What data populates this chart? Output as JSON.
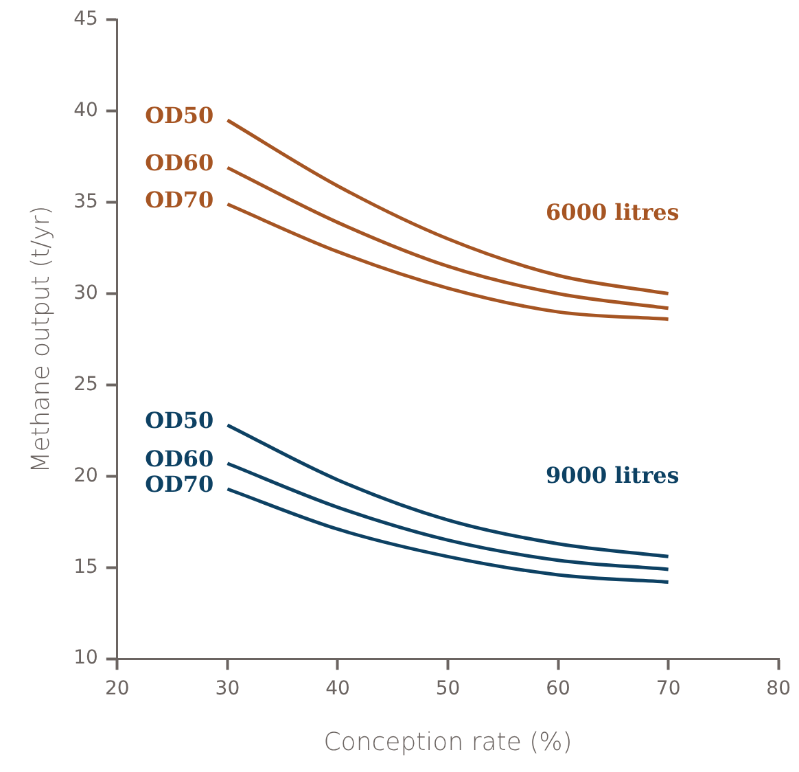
{
  "chart_data": {
    "type": "line",
    "xlabel": "Conception rate (%)",
    "ylabel": "Methane output (t/yr)",
    "x": [
      30,
      40,
      50,
      60,
      70
    ],
    "xlim": [
      20,
      80
    ],
    "xticks": [
      20,
      30,
      40,
      50,
      60,
      70,
      80
    ],
    "ylim": [
      10,
      45
    ],
    "yticks": [
      10,
      15,
      20,
      25,
      30,
      35,
      40,
      45
    ],
    "grid": false,
    "legend": false,
    "marker": "none",
    "line_style": "solid",
    "series": [
      {
        "name": "OD50",
        "color": "#a65523",
        "values": [
          39.5,
          35.9,
          33.0,
          31.0,
          30.0
        ]
      },
      {
        "name": "OD60",
        "color": "#a65523",
        "values": [
          36.9,
          33.9,
          31.5,
          30.0,
          29.2
        ]
      },
      {
        "name": "OD70",
        "color": "#a65523",
        "values": [
          34.9,
          32.3,
          30.3,
          29.0,
          28.6
        ]
      },
      {
        "name": "OD50",
        "color": "#0d4163",
        "values": [
          22.8,
          19.8,
          17.6,
          16.3,
          15.6
        ]
      },
      {
        "name": "OD60",
        "color": "#0d4163",
        "values": [
          20.7,
          18.3,
          16.5,
          15.4,
          14.9
        ]
      },
      {
        "name": "OD70",
        "color": "#0d4163",
        "values": [
          19.3,
          17.1,
          15.6,
          14.6,
          14.2
        ]
      }
    ],
    "annotations": [
      "6000 litres",
      "9000 litres"
    ]
  }
}
